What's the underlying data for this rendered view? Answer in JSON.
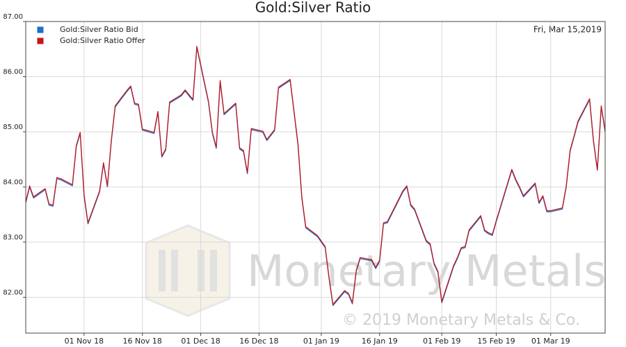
{
  "chart_data": {
    "type": "line",
    "title": "Gold:Silver Ratio",
    "annotation": "Fri, Mar 15,2019",
    "watermark": "Monetary Metals",
    "copyright": "© 2019 Monetary Metals & Co.",
    "legend_position": "upper left",
    "grid": true,
    "x": [
      "2018-10-17",
      "2018-10-18",
      "2018-10-19",
      "2018-10-22",
      "2018-10-23",
      "2018-10-24",
      "2018-10-25",
      "2018-10-26",
      "2018-10-29",
      "2018-10-30",
      "2018-10-31",
      "2018-11-01",
      "2018-11-02",
      "2018-11-05",
      "2018-11-06",
      "2018-11-07",
      "2018-11-08",
      "2018-11-09",
      "2018-11-12",
      "2018-11-13",
      "2018-11-14",
      "2018-11-15",
      "2018-11-16",
      "2018-11-19",
      "2018-11-20",
      "2018-11-21",
      "2018-11-22",
      "2018-11-23",
      "2018-11-26",
      "2018-11-27",
      "2018-11-28",
      "2018-11-29",
      "2018-11-30",
      "2018-12-03",
      "2018-12-04",
      "2018-12-05",
      "2018-12-06",
      "2018-12-07",
      "2018-12-10",
      "2018-12-11",
      "2018-12-12",
      "2018-12-13",
      "2018-12-14",
      "2018-12-17",
      "2018-12-18",
      "2018-12-19",
      "2018-12-20",
      "2018-12-21",
      "2018-12-24",
      "2018-12-26",
      "2018-12-27",
      "2018-12-28",
      "2018-12-31",
      "2019-01-02",
      "2019-01-03",
      "2019-01-04",
      "2019-01-07",
      "2019-01-08",
      "2019-01-09",
      "2019-01-10",
      "2019-01-11",
      "2019-01-14",
      "2019-01-15",
      "2019-01-16",
      "2019-01-17",
      "2019-01-18",
      "2019-01-22",
      "2019-01-23",
      "2019-01-24",
      "2019-01-25",
      "2019-01-28",
      "2019-01-29",
      "2019-01-30",
      "2019-01-31",
      "2019-02-01",
      "2019-02-04",
      "2019-02-05",
      "2019-02-06",
      "2019-02-07",
      "2019-02-08",
      "2019-02-11",
      "2019-02-12",
      "2019-02-13",
      "2019-02-14",
      "2019-02-15",
      "2019-02-19",
      "2019-02-20",
      "2019-02-21",
      "2019-02-22",
      "2019-02-25",
      "2019-02-26",
      "2019-02-27",
      "2019-02-28",
      "2019-03-01",
      "2019-03-04",
      "2019-03-05",
      "2019-03-06",
      "2019-03-07",
      "2019-03-08",
      "2019-03-11",
      "2019-03-12",
      "2019-03-13",
      "2019-03-14",
      "2019-03-15"
    ],
    "series": [
      {
        "name": "Gold:Silver Ratio Bid",
        "color": "#1f6fc4",
        "values": [
          83.71,
          84.0,
          83.8,
          83.95,
          83.67,
          83.65,
          84.15,
          84.13,
          84.02,
          84.73,
          84.97,
          83.84,
          83.33,
          83.91,
          84.42,
          84.0,
          84.82,
          85.45,
          85.73,
          85.81,
          85.5,
          85.48,
          85.03,
          84.97,
          85.35,
          84.54,
          84.67,
          85.52,
          85.65,
          85.74,
          85.65,
          85.57,
          86.53,
          85.53,
          84.97,
          84.7,
          85.91,
          85.31,
          85.5,
          84.69,
          84.64,
          84.24,
          85.04,
          84.99,
          84.84,
          84.93,
          85.02,
          85.79,
          85.93,
          84.77,
          83.8,
          83.26,
          83.1,
          82.9,
          82.34,
          81.85,
          82.1,
          82.05,
          81.88,
          82.47,
          82.7,
          82.66,
          82.52,
          82.65,
          83.33,
          83.35,
          83.91,
          84.0,
          83.66,
          83.58,
          83.01,
          82.95,
          82.6,
          82.45,
          81.9,
          82.55,
          82.7,
          82.88,
          82.9,
          83.2,
          83.46,
          83.2,
          83.15,
          83.12,
          83.37,
          84.3,
          84.12,
          83.98,
          83.82,
          84.05,
          83.7,
          83.82,
          83.55,
          83.55,
          83.6,
          84.0,
          84.65,
          84.9,
          85.17,
          85.58,
          84.82,
          84.3,
          85.45,
          85.0
        ]
      },
      {
        "name": "Gold:Silver Ratio Offer",
        "color": "#c4161c",
        "values": [
          83.73,
          84.02,
          83.82,
          83.97,
          83.69,
          83.67,
          84.17,
          84.15,
          84.04,
          84.75,
          84.99,
          83.86,
          83.35,
          83.93,
          84.44,
          84.02,
          84.84,
          85.47,
          85.75,
          85.83,
          85.52,
          85.5,
          85.05,
          84.99,
          85.37,
          84.56,
          84.69,
          85.54,
          85.67,
          85.76,
          85.67,
          85.59,
          86.55,
          85.55,
          84.99,
          84.72,
          85.93,
          85.33,
          85.52,
          84.71,
          84.66,
          84.26,
          85.06,
          85.01,
          84.86,
          84.95,
          85.04,
          85.81,
          85.95,
          84.79,
          83.82,
          83.28,
          83.12,
          82.92,
          82.36,
          81.87,
          82.12,
          82.07,
          81.9,
          82.49,
          82.72,
          82.68,
          82.54,
          82.67,
          83.35,
          83.37,
          83.93,
          84.02,
          83.68,
          83.6,
          83.03,
          82.97,
          82.62,
          82.47,
          81.92,
          82.57,
          82.72,
          82.9,
          82.92,
          83.22,
          83.48,
          83.22,
          83.17,
          83.14,
          83.39,
          84.32,
          84.14,
          84.0,
          83.84,
          84.07,
          83.72,
          83.84,
          83.57,
          83.57,
          83.62,
          84.02,
          84.67,
          84.92,
          85.19,
          85.6,
          84.84,
          84.32,
          85.47,
          85.02
        ]
      }
    ],
    "xlim": [
      "2018-10-17",
      "2019-03-15"
    ],
    "xticks": [
      {
        "value": "2018-11-01",
        "label": "01 Nov 18"
      },
      {
        "value": "2018-11-16",
        "label": "16 Nov 18"
      },
      {
        "value": "2018-12-01",
        "label": "01 Dec 18"
      },
      {
        "value": "2018-12-16",
        "label": "16 Dec 18"
      },
      {
        "value": "2019-01-01",
        "label": "01 Jan 19"
      },
      {
        "value": "2019-01-16",
        "label": "16 Jan 19"
      },
      {
        "value": "2019-02-01",
        "label": "01 Feb 19"
      },
      {
        "value": "2019-02-15",
        "label": "15 Feb 19"
      },
      {
        "value": "2019-03-01",
        "label": "01 Mar 19"
      }
    ],
    "ylim": [
      81.35,
      87
    ],
    "yticks": [
      {
        "value": 82,
        "label": "82.00"
      },
      {
        "value": 83,
        "label": "83.00"
      },
      {
        "value": 84,
        "label": "84.00"
      },
      {
        "value": 85,
        "label": "85.00"
      },
      {
        "value": 86,
        "label": "86.00"
      },
      {
        "value": 87,
        "label": "87.00"
      }
    ]
  }
}
